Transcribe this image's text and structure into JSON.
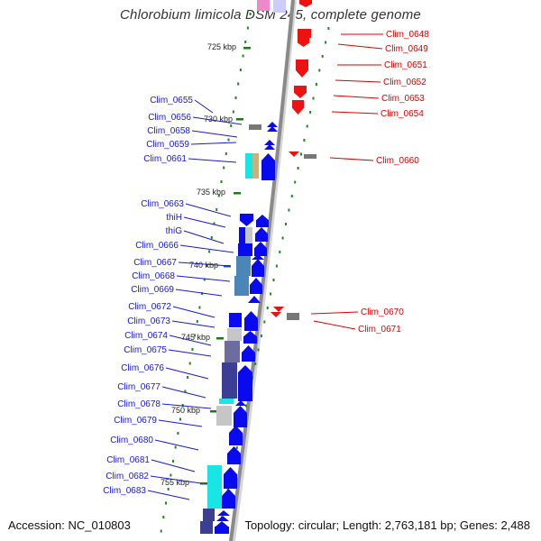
{
  "title": "Chlorobium limicola DSM 245, complete genome",
  "accession": "Accession: NC_010803",
  "summary": "Topology: circular; Length: 2,763,181 bp; Genes: 2,488",
  "colors": {
    "backbone": "#8a8a8a",
    "left_label": "#1a1acc",
    "right_label": "#dd0000",
    "dots": "#1f8a1f",
    "gene_blue": "#0a0aee",
    "gene_red": "#ee1111",
    "cyan": "#19e5e5",
    "steel": "#4a86b8",
    "navy": "#3b3e92",
    "gray": "#c6c6c6"
  },
  "kbp_labels": [
    "725 kbp",
    "730 kbp",
    "735 kbp",
    "740 kbp",
    "745 kbp",
    "750 kbp",
    "755 kbp"
  ],
  "left_genes": [
    "Clim_0655",
    "Clim_0656",
    "Clim_0658",
    "Clim_0659",
    "Clim_0661",
    "Clim_0663",
    "thiH",
    "thiG",
    "Clim_0666",
    "Clim_0667",
    "Clim_0668",
    "Clim_0669",
    "Clim_0672",
    "Clim_0673",
    "Clim_0674",
    "Clim_0675",
    "Clim_0676",
    "Clim_0677",
    "Clim_0678",
    "Clim_0679",
    "Clim_0680",
    "Clim_0681",
    "Clim_0682",
    "Clim_0683"
  ],
  "right_genes": [
    "Clim_0648",
    "Clim_0649",
    "Clim_0651",
    "Clim_0652",
    "Clim_0653",
    "Clim_0654",
    "Clim_0660",
    "Clim_0670",
    "Clim_0671"
  ]
}
